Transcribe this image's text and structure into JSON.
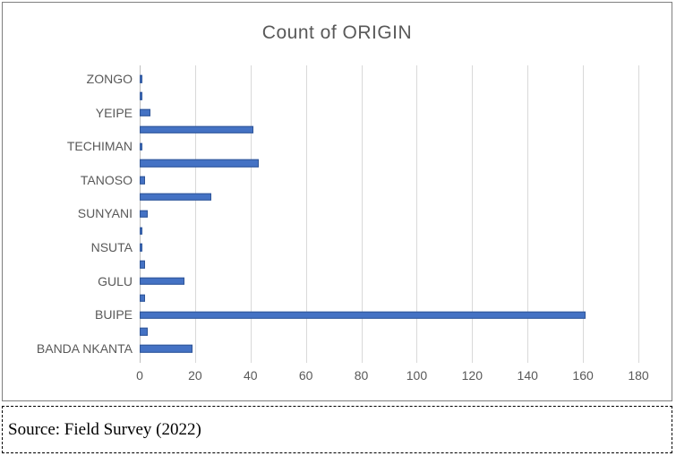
{
  "chart_data": {
    "type": "bar",
    "orientation": "horizontal",
    "title": "Count of ORIGIN",
    "categories": [
      "ZONGO",
      "",
      "YEIPE",
      "",
      "TECHIMAN",
      "",
      "TANOSO",
      "",
      "SUNYANI",
      "",
      "NSUTA",
      "",
      "GULU",
      "",
      "BUIPE",
      "",
      "BANDA NKANTA"
    ],
    "values": [
      1,
      1,
      4,
      41,
      1,
      43,
      2,
      26,
      3,
      1,
      1,
      2,
      16,
      2,
      161,
      3,
      19
    ],
    "xlabel": "",
    "ylabel": "",
    "xlim": [
      0,
      180
    ],
    "xticks": [
      0,
      20,
      40,
      60,
      80,
      100,
      120,
      140,
      160,
      180
    ],
    "grid": true,
    "legend": "none",
    "colors": {
      "bar_fill": "#4472C4",
      "bar_border": "#2F5597",
      "title_text": "#595959",
      "axis_text": "#595959",
      "gridline": "#D9D9D9",
      "axis_line": "#BFBFBF"
    }
  },
  "source": {
    "text": "Source: Field Survey (2022)"
  }
}
